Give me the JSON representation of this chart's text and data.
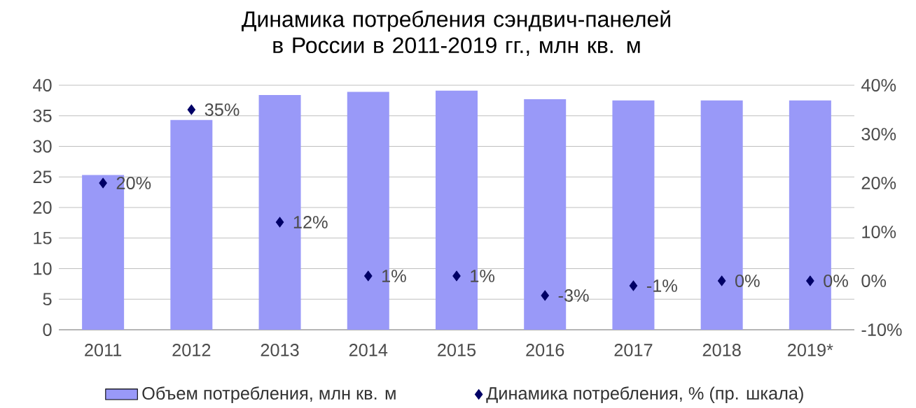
{
  "chart_data": {
    "type": "bar",
    "title": "Динамика потребления сэндвич-панелей в России в 2011-2019 гг., млн кв. м",
    "categories": [
      "2011",
      "2012",
      "2013",
      "2014",
      "2015",
      "2016",
      "2017",
      "2018",
      "2019*"
    ],
    "series": [
      {
        "name": "Объем потребления, млн кв. м",
        "color": "#9999f8",
        "values": [
          25.3,
          34.3,
          38.4,
          38.9,
          39.1,
          37.7,
          37.5,
          37.5,
          37.5
        ]
      },
      {
        "name": "Динамика потребления, % (пр. шкала)",
        "type": "scatter",
        "axis": "y2",
        "color": "#000066",
        "marker": "diamond",
        "values": [
          20,
          35,
          12,
          1,
          1,
          -3,
          -1,
          0,
          0
        ],
        "value_labels": [
          "20%",
          "35%",
          "12%",
          "1%",
          "1%",
          "-3%",
          "-1%",
          "0%",
          "0%"
        ]
      }
    ],
    "ylim": [
      0,
      40
    ],
    "yticks": [
      0,
      5,
      10,
      15,
      20,
      25,
      30,
      35,
      40
    ],
    "y2lim": [
      -10,
      40
    ],
    "y2ticks": [
      {
        "value": -10,
        "label": "-10%"
      },
      {
        "value": 0,
        "label": "0%"
      },
      {
        "value": 10,
        "label": "10%"
      },
      {
        "value": 20,
        "label": "20%"
      },
      {
        "value": 30,
        "label": "30%"
      },
      {
        "value": 40,
        "label": "40%"
      }
    ],
    "grid": "y",
    "legend": "bottom"
  }
}
